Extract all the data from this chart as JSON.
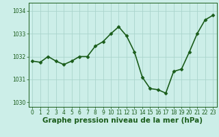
{
  "x": [
    0,
    1,
    2,
    3,
    4,
    5,
    6,
    7,
    8,
    9,
    10,
    11,
    12,
    13,
    14,
    15,
    16,
    17,
    18,
    19,
    20,
    21,
    22,
    23
  ],
  "y": [
    1031.8,
    1031.75,
    1032.0,
    1031.8,
    1031.65,
    1031.8,
    1032.0,
    1032.0,
    1032.45,
    1032.65,
    1033.0,
    1033.3,
    1032.9,
    1032.2,
    1031.1,
    1030.6,
    1030.55,
    1030.4,
    1031.35,
    1031.45,
    1032.2,
    1033.0,
    1033.6,
    1033.8
  ],
  "line_color": "#1a5c1a",
  "marker": "D",
  "marker_size": 2.5,
  "background_color": "#cceee8",
  "grid_color": "#aad4cc",
  "xlabel": "Graphe pression niveau de la mer (hPa)",
  "xlabel_fontsize": 7.5,
  "ylim": [
    1029.8,
    1034.35
  ],
  "xlim": [
    -0.5,
    23.5
  ],
  "yticks": [
    1030,
    1031,
    1032,
    1033,
    1034
  ],
  "xticks": [
    0,
    1,
    2,
    3,
    4,
    5,
    6,
    7,
    8,
    9,
    10,
    11,
    12,
    13,
    14,
    15,
    16,
    17,
    18,
    19,
    20,
    21,
    22,
    23
  ],
  "tick_fontsize": 5.5,
  "line_width": 1.2
}
